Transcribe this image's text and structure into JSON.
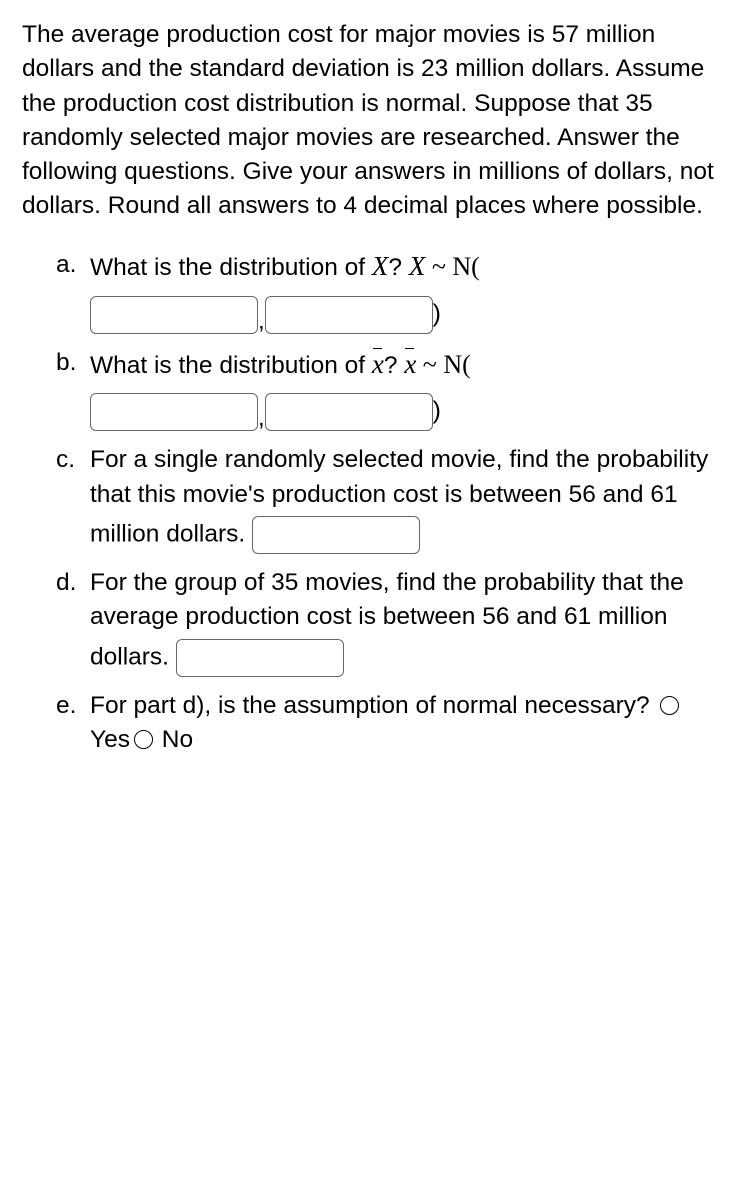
{
  "intro": "The average production cost for major movies is 57 million dollars and the standard deviation is 23 million dollars. Assume the production cost distribution is normal. Suppose that 35 randomly selected major movies are researched. Answer the following questions.  Give your answers in millions of dollars, not dollars.  Round all answers to 4 decimal places where possible.",
  "items": {
    "a": {
      "marker": "a.",
      "q_pre": "What is the distribution of ",
      "q_post": "? ",
      "tilde": " ~ ",
      "dist": "N("
    },
    "b": {
      "marker": "b.",
      "q_pre": "What is the distribution of ",
      "q_post": "? ",
      "tilde": " ~ ",
      "dist": "N("
    },
    "c": {
      "marker": "c.",
      "text1": "For a single randomly selected movie, find the probability that this movie's production cost is between 56 and 61 million dollars."
    },
    "d": {
      "marker": "d.",
      "text1": "For the group of 35 movies, find the probability that the average production cost is between 56 and 61 million dollars."
    },
    "e": {
      "marker": "e.",
      "text": "For part d), is the assumption of normal necessary?",
      "opt_yes": "Yes",
      "opt_no": "No"
    }
  },
  "sep_comma": ",",
  "close_paren": ")"
}
